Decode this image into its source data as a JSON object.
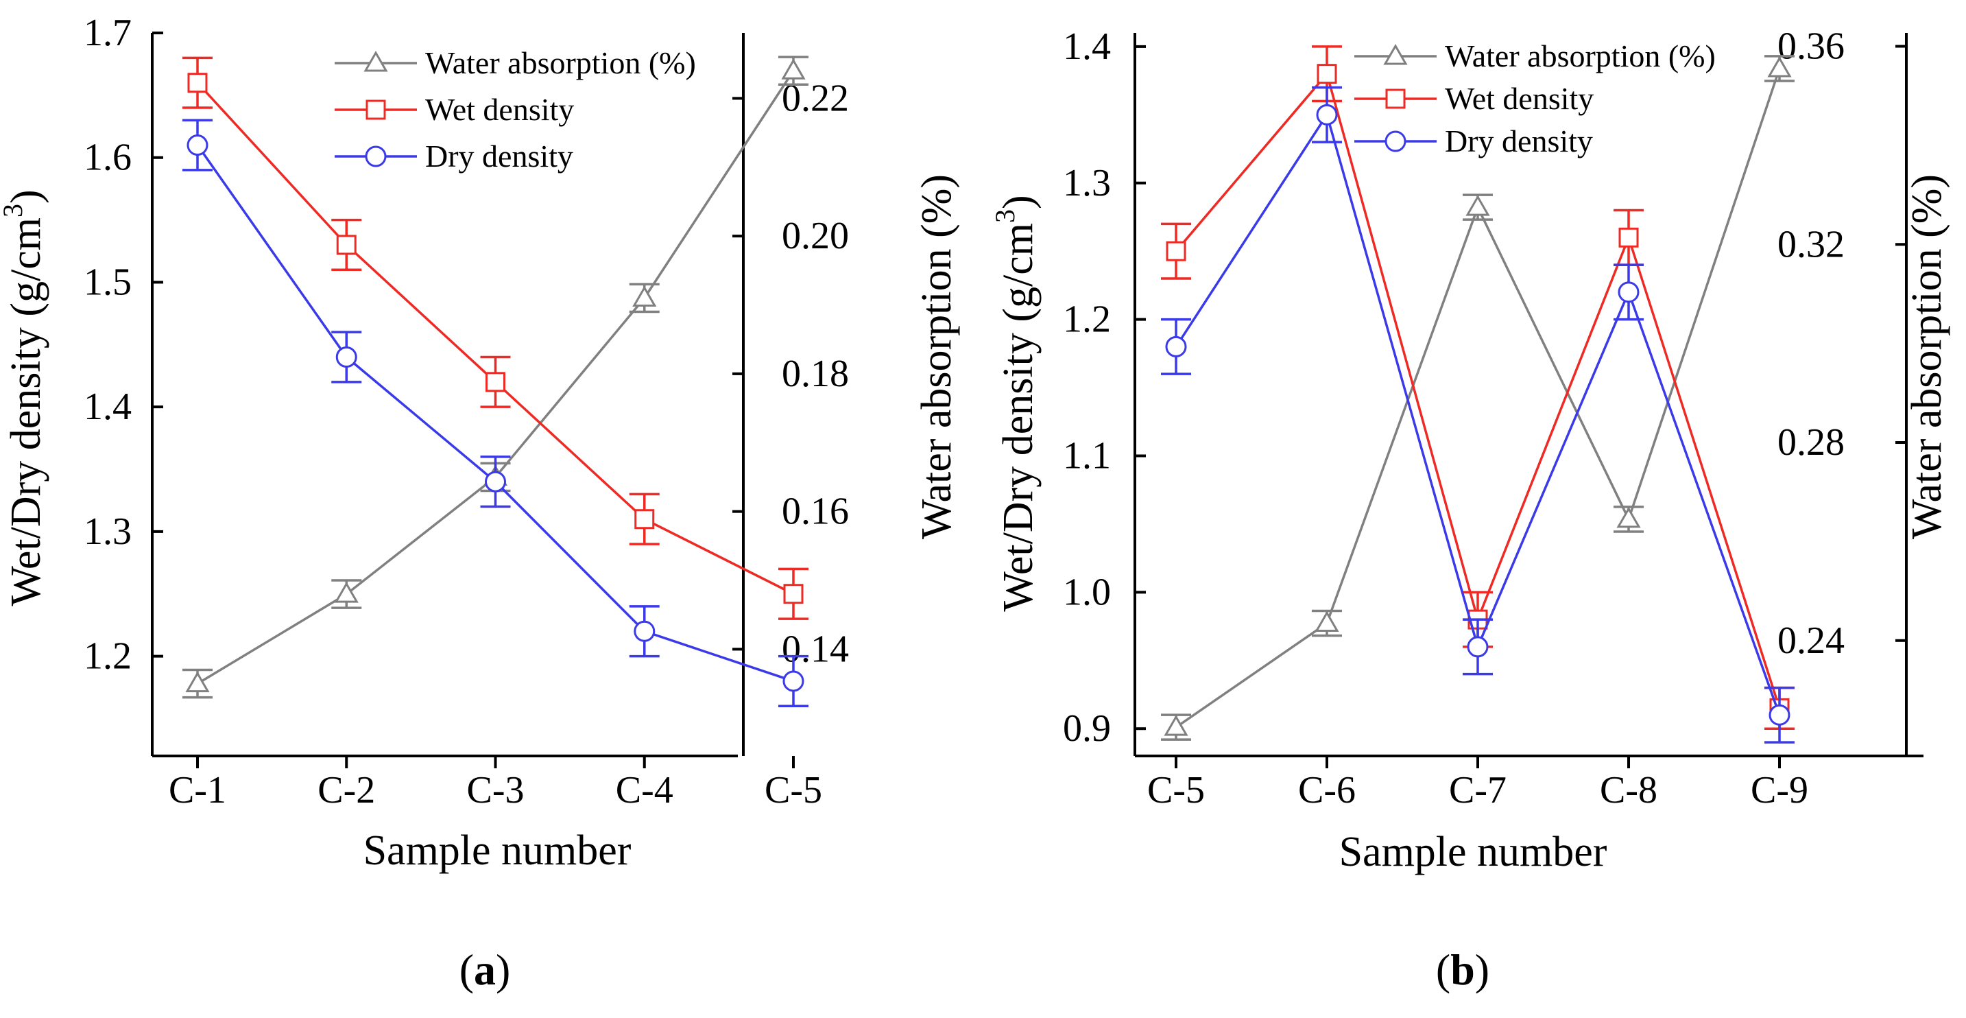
{
  "chart_data": [
    {
      "type": "line",
      "panel_label": "a",
      "categories": [
        "C-1",
        "C-2",
        "C-3",
        "C-4",
        "C-5"
      ],
      "xlabel": "Sample number",
      "ylabel": "Wet/Dry density (g/cm",
      "ylabel_superscript": "3",
      "ylabel_close": ")",
      "y2label": "Water absorption (%)",
      "ylim": [
        1.12,
        1.7
      ],
      "y2lim": [
        0.1245,
        0.2295
      ],
      "yticks": [
        1.2,
        1.3,
        1.4,
        1.5,
        1.6,
        1.7
      ],
      "ytick_labels": [
        "1.2",
        "1.3",
        "1.4",
        "1.5",
        "1.6",
        "1.7"
      ],
      "y2ticks": [
        0.14,
        0.16,
        0.18,
        0.2,
        0.22
      ],
      "y2tick_labels": [
        "0.14",
        "0.16",
        "0.18",
        "0.20",
        "0.22"
      ],
      "legend_position": "top-right",
      "series": [
        {
          "name": "Water absorption (%)",
          "axis": "right",
          "marker": "triangle",
          "color": "#808080",
          "values": [
            0.135,
            0.148,
            0.165,
            0.191,
            0.224
          ],
          "errors": [
            0.002,
            0.002,
            0.002,
            0.002,
            0.002
          ]
        },
        {
          "name": "Wet density",
          "axis": "left",
          "marker": "square",
          "color": "#ee2a24",
          "values": [
            1.66,
            1.53,
            1.42,
            1.31,
            1.25
          ],
          "errors": [
            0.02,
            0.02,
            0.02,
            0.02,
            0.02
          ]
        },
        {
          "name": "Dry density",
          "axis": "left",
          "marker": "circle",
          "color": "#3a3ae8",
          "values": [
            1.61,
            1.44,
            1.34,
            1.22,
            1.18
          ],
          "errors": [
            0.02,
            0.02,
            0.02,
            0.02,
            0.02
          ]
        }
      ]
    },
    {
      "type": "line",
      "panel_label": "b",
      "categories": [
        "C-5",
        "C-6",
        "C-7",
        "C-8",
        "C-9"
      ],
      "xlabel": "Sample number",
      "ylabel": "Wet/Dry density (g/cm",
      "ylabel_superscript": "3",
      "ylabel_close": ")",
      "y2label": "Water absorption (%)",
      "ylim": [
        0.88,
        1.41
      ],
      "y2lim": [
        0.2167,
        0.3627
      ],
      "yticks": [
        0.9,
        1.0,
        1.1,
        1.2,
        1.3,
        1.4
      ],
      "ytick_labels": [
        "0.9",
        "1.0",
        "1.1",
        "1.2",
        "1.3",
        "1.4"
      ],
      "y2ticks": [
        0.24,
        0.28,
        0.32,
        0.36
      ],
      "y2tick_labels": [
        "0.24",
        "0.28",
        "0.32",
        "0.36"
      ],
      "legend_position": "top-right",
      "series": [
        {
          "name": "Water absorption (%)",
          "axis": "right",
          "marker": "triangle",
          "color": "#808080",
          "values": [
            0.2225,
            0.2435,
            0.3275,
            0.2645,
            0.3555
          ],
          "errors": [
            0.0025,
            0.0025,
            0.0025,
            0.0025,
            0.0025
          ]
        },
        {
          "name": "Wet density",
          "axis": "left",
          "marker": "square",
          "color": "#ee2a24",
          "values": [
            1.25,
            1.38,
            0.98,
            1.26,
            0.915
          ],
          "errors": [
            0.02,
            0.02,
            0.02,
            0.02,
            0.015
          ]
        },
        {
          "name": "Dry density",
          "axis": "left",
          "marker": "circle",
          "color": "#3a3ae8",
          "values": [
            1.18,
            1.35,
            0.96,
            1.22,
            0.91
          ],
          "errors": [
            0.02,
            0.02,
            0.02,
            0.02,
            0.02
          ]
        }
      ]
    }
  ]
}
